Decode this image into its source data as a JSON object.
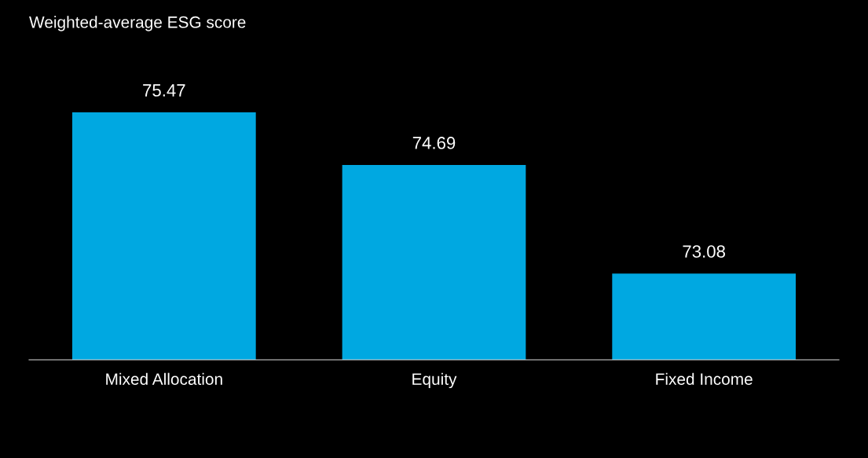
{
  "chart_data": {
    "type": "bar",
    "title": "Weighted-average ESG score",
    "categories": [
      "Mixed Allocation",
      "Equity",
      "Fixed Income"
    ],
    "values": [
      75.47,
      74.69,
      73.08
    ],
    "color": "#00a8e1",
    "ylim": [
      71.8,
      75.47
    ],
    "data_labels": true,
    "grid": false,
    "tick_labels": "x"
  }
}
